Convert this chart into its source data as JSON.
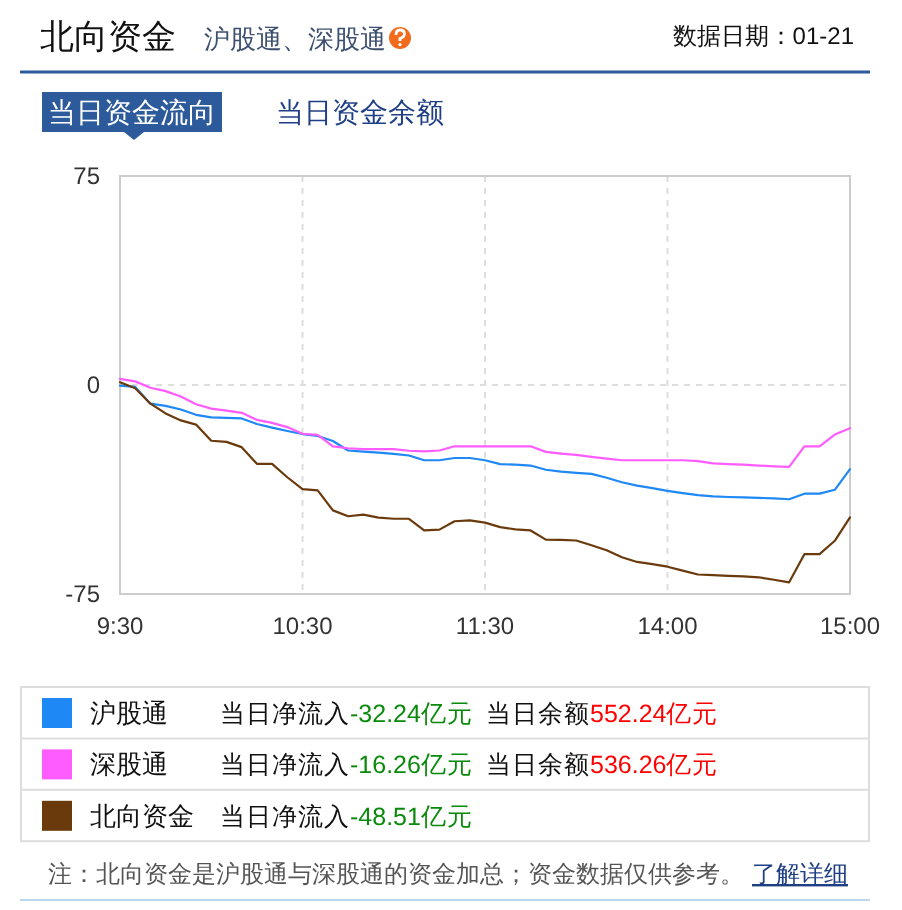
{
  "chart_data": {
    "type": "line",
    "title": "北向资金",
    "subtitle": "沪股通、深股通",
    "annotations": [
      "数据日期：01-21",
      "当日资金流向",
      "当日资金余额",
      "当日净流入-32.24亿元",
      "当日余额552.24亿元",
      "当日净流入-16.26亿元",
      "当日余额536.26亿元",
      "当日净流入-48.51亿元",
      "注：北向资金是沪股通与深股通的资金加总；资金数据仅供参考。",
      "了解详细"
    ],
    "categories": [
      "9:30",
      null,
      null,
      null,
      null,
      null,
      null,
      null,
      null,
      null,
      null,
      null,
      "10:30",
      null,
      null,
      null,
      null,
      null,
      null,
      null,
      null,
      null,
      null,
      null,
      "11:30",
      null,
      null,
      null,
      null,
      null,
      null,
      null,
      null,
      null,
      null,
      null,
      "14:00",
      null,
      null,
      null,
      null,
      null,
      null,
      null,
      null,
      null,
      null,
      null,
      "15:00"
    ],
    "ylim": [
      -75,
      75
    ],
    "yticks": [
      -75,
      0,
      75
    ],
    "grid": true,
    "legend": "bottom",
    "line_style": "solid",
    "series": [
      {
        "name": "沪股通",
        "color": "#1e88f5",
        "values": [
          -0.2,
          -0.7,
          -6.7,
          -7.5,
          -8.8,
          -10.7,
          -11.6,
          -11.8,
          -12,
          -14,
          -15.3,
          -16.5,
          -17.6,
          -18.3,
          -20.1,
          -23.5,
          -23.9,
          -24.3,
          -24.7,
          -25.3,
          -27,
          -27,
          -26.2,
          -26.2,
          -27,
          -28.4,
          -28.6,
          -28.9,
          -30.4,
          -31.1,
          -31.5,
          -31.9,
          -33.3,
          -34.9,
          -36.1,
          -37,
          -38,
          -38.8,
          -39.5,
          -40,
          -40.2,
          -40.3,
          -40.5,
          -40.7,
          -41,
          -39,
          -39,
          -37.6,
          -30.2
        ]
      },
      {
        "name": "深股通",
        "color": "#ff5cff",
        "values": [
          2.2,
          1.3,
          -1,
          -2.2,
          -4.1,
          -6.9,
          -8.5,
          -9.2,
          -10,
          -12.5,
          -13.6,
          -15.1,
          -17.5,
          -17.9,
          -22,
          -22.7,
          -23,
          -23,
          -23,
          -23.6,
          -23.8,
          -23.5,
          -22,
          -22,
          -22,
          -22,
          -22,
          -22,
          -24,
          -24.6,
          -25.1,
          -25.8,
          -26.4,
          -27,
          -27,
          -27,
          -27,
          -27,
          -27.3,
          -28.1,
          -28.4,
          -28.6,
          -28.9,
          -29.2,
          -29.4,
          -22,
          -22,
          -17.8,
          -15.5
        ]
      },
      {
        "name": "北向资金",
        "color": "#6b3a0c",
        "values": [
          1,
          -1.2,
          -6.7,
          -10.2,
          -12.7,
          -14.2,
          -20,
          -20.4,
          -22.3,
          -28.3,
          -28.3,
          -33.1,
          -37.4,
          -37.8,
          -45,
          -47.1,
          -46.5,
          -47.6,
          -48,
          -48,
          -52.2,
          -51.9,
          -48.9,
          -48.6,
          -49.4,
          -51,
          -51.8,
          -52.2,
          -55.5,
          -55.6,
          -55.8,
          -57.5,
          -59.3,
          -61.8,
          -63.5,
          -64.3,
          -65.2,
          -66.6,
          -68,
          -68.2,
          -68.5,
          -68.7,
          -69,
          -69.9,
          -70.8,
          -60.7,
          -60.7,
          -55.9,
          -47.5
        ]
      }
    ]
  }
}
